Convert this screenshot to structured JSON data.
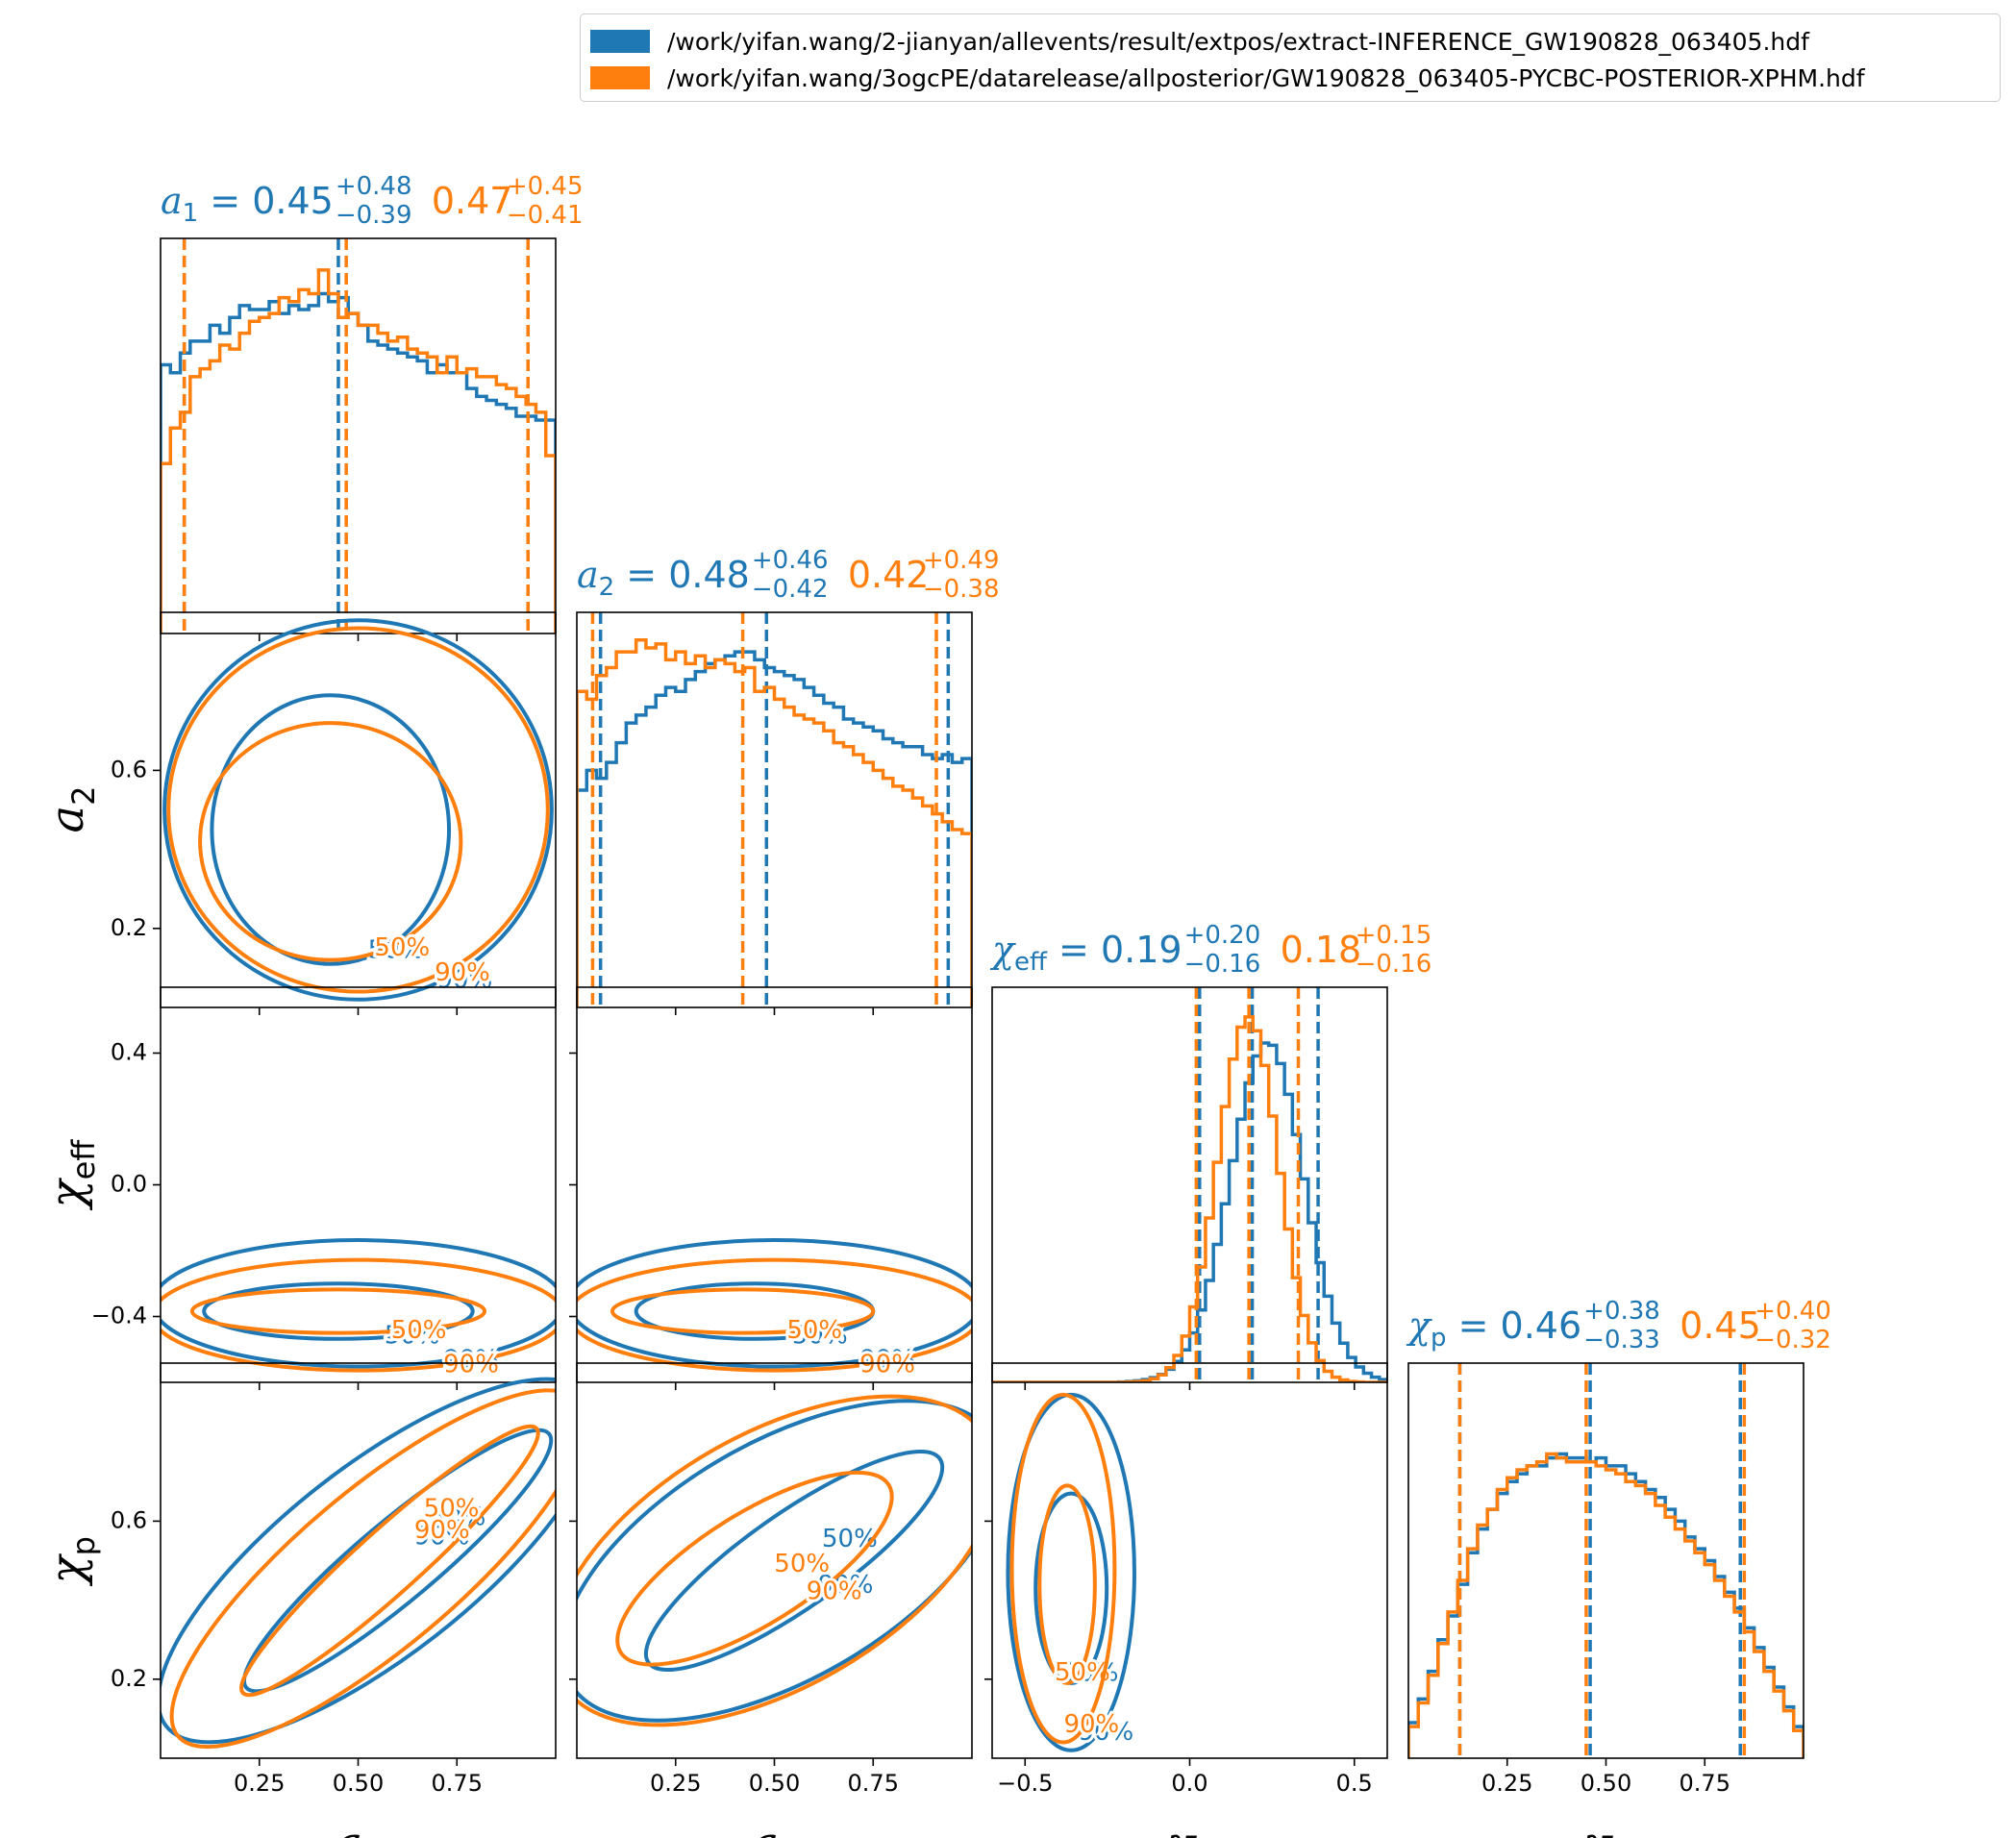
{
  "legend": {
    "entries": [
      {
        "label": "/work/yifan.wang/2-jianyan/allevents/result/extpos/extract-INFERENCE_GW190828_063405.hdf",
        "color": "#1f77b4"
      },
      {
        "label": "/work/yifan.wang/3ogcPE/datarelease/allposterior/GW190828_063405-PYCBC-POSTERIOR-XPHM.hdf",
        "color": "#ff7f0e"
      }
    ]
  },
  "chart_data": {
    "type": "corner",
    "colors": {
      "series1": "#1f77b4",
      "series2": "#ff7f0e"
    },
    "params": [
      {
        "key": "a1",
        "label": "a",
        "sub": "1",
        "range": [
          0,
          1
        ],
        "ticks": [
          0.25,
          0.5,
          0.75
        ],
        "tick_labels": [
          "0.25",
          "0.50",
          "0.75"
        ],
        "yticks": [],
        "ytick_labels": [],
        "summary": [
          {
            "median": "0.45",
            "plus": "+0.48",
            "minus": "−0.39"
          },
          {
            "median": "0.47",
            "plus": "+0.45",
            "minus": "−0.41"
          }
        ],
        "lines": [
          [
            0.06,
            0.45,
            0.93
          ],
          [
            0.06,
            0.47,
            0.93
          ]
        ]
      },
      {
        "key": "a2",
        "label": "a",
        "sub": "2",
        "range": [
          0,
          1
        ],
        "ticks": [
          0.25,
          0.5,
          0.75
        ],
        "tick_labels": [
          "0.25",
          "0.50",
          "0.75"
        ],
        "yticks": [
          0.2,
          0.6
        ],
        "ytick_labels": [
          "0.2",
          "0.6"
        ],
        "summary": [
          {
            "median": "0.48",
            "plus": "+0.46",
            "minus": "−0.42"
          },
          {
            "median": "0.42",
            "plus": "+0.49",
            "minus": "−0.38"
          }
        ],
        "lines": [
          [
            0.06,
            0.48,
            0.94
          ],
          [
            0.04,
            0.42,
            0.91
          ]
        ]
      },
      {
        "key": "chi_eff",
        "label": "χ",
        "sub": "eff",
        "range": [
          -0.6,
          0.6
        ],
        "ticks": [
          -0.5,
          0.0,
          0.5
        ],
        "tick_labels": [
          "−0.5",
          "0.0",
          "0.5"
        ],
        "yticks": [
          -0.4,
          0.0,
          0.4
        ],
        "ytick_labels": [
          "−0.4",
          "0.0",
          "0.4"
        ],
        "summary": [
          {
            "median": "0.19",
            "plus": "+0.20",
            "minus": "−0.16"
          },
          {
            "median": "0.18",
            "plus": "+0.15",
            "minus": "−0.16"
          }
        ],
        "lines": [
          [
            0.03,
            0.19,
            0.39
          ],
          [
            0.02,
            0.18,
            0.33
          ]
        ]
      },
      {
        "key": "chi_p",
        "label": "χ",
        "sub": "p",
        "range": [
          0,
          1
        ],
        "ticks": [
          0.25,
          0.5,
          0.75
        ],
        "tick_labels": [
          "0.25",
          "0.50",
          "0.75"
        ],
        "yticks": [
          0.2,
          0.6
        ],
        "ytick_labels": [
          "0.2",
          "0.6"
        ],
        "summary": [
          {
            "median": "0.46",
            "plus": "+0.38",
            "minus": "−0.33"
          },
          {
            "median": "0.45",
            "plus": "+0.40",
            "minus": "−0.32"
          }
        ],
        "lines": [
          [
            0.13,
            0.46,
            0.84
          ],
          [
            0.13,
            0.45,
            0.85
          ]
        ]
      }
    ],
    "histograms": [
      {
        "x_range": [
          0,
          1
        ],
        "series": [
          {
            "values": [
              0.68,
              0.66,
              0.71,
              0.74,
              0.74,
              0.78,
              0.76,
              0.8,
              0.83,
              0.82,
              0.82,
              0.84,
              0.81,
              0.83,
              0.82,
              0.83,
              0.86,
              0.84,
              0.85,
              0.81,
              0.78,
              0.74,
              0.73,
              0.72,
              0.71,
              0.7,
              0.69,
              0.66,
              0.68,
              0.66,
              0.66,
              0.62,
              0.6,
              0.59,
              0.58,
              0.57,
              0.55,
              0.55,
              0.54,
              0.54
            ]
          },
          {
            "values": [
              0.43,
              0.52,
              0.56,
              0.65,
              0.67,
              0.69,
              0.73,
              0.72,
              0.76,
              0.79,
              0.8,
              0.81,
              0.85,
              0.84,
              0.87,
              0.86,
              0.92,
              0.86,
              0.8,
              0.81,
              0.78,
              0.78,
              0.76,
              0.74,
              0.75,
              0.72,
              0.71,
              0.7,
              0.66,
              0.7,
              0.66,
              0.67,
              0.65,
              0.65,
              0.63,
              0.62,
              0.6,
              0.58,
              0.56,
              0.45
            ]
          }
        ]
      },
      {
        "x_range": [
          0,
          1
        ],
        "series": [
          {
            "values": [
              0.55,
              0.6,
              0.58,
              0.62,
              0.67,
              0.72,
              0.74,
              0.76,
              0.79,
              0.81,
              0.8,
              0.83,
              0.85,
              0.87,
              0.88,
              0.89,
              0.9,
              0.9,
              0.88,
              0.86,
              0.85,
              0.84,
              0.83,
              0.81,
              0.79,
              0.77,
              0.76,
              0.73,
              0.72,
              0.71,
              0.7,
              0.68,
              0.67,
              0.66,
              0.66,
              0.64,
              0.63,
              0.64,
              0.62,
              0.63
            ]
          },
          {
            "values": [
              0.8,
              0.78,
              0.84,
              0.86,
              0.9,
              0.9,
              0.93,
              0.91,
              0.92,
              0.88,
              0.9,
              0.87,
              0.89,
              0.86,
              0.88,
              0.87,
              0.85,
              0.86,
              0.8,
              0.81,
              0.78,
              0.76,
              0.74,
              0.73,
              0.72,
              0.7,
              0.67,
              0.66,
              0.64,
              0.62,
              0.6,
              0.58,
              0.56,
              0.55,
              0.53,
              0.51,
              0.49,
              0.47,
              0.45,
              0.44
            ]
          }
        ]
      },
      {
        "x_range": [
          -0.6,
          0.6
        ],
        "series": [
          {
            "values": [
              0,
              0,
              0,
              0,
              0,
              0,
              0,
              0,
              0,
              0,
              0,
              0,
              0,
              0,
              0,
              0,
              0.001,
              0.002,
              0.004,
              0.007,
              0.012,
              0.02,
              0.033,
              0.053,
              0.082,
              0.125,
              0.183,
              0.258,
              0.349,
              0.452,
              0.561,
              0.666,
              0.758,
              0.826,
              0.859,
              0.853,
              0.807,
              0.729,
              0.627,
              0.515,
              0.404,
              0.303,
              0.218,
              0.15,
              0.099,
              0.063,
              0.039,
              0.023,
              0.013,
              0.007
            ]
          },
          {
            "values": [
              0,
              0,
              0,
              0,
              0,
              0,
              0,
              0,
              0,
              0,
              0,
              0,
              0,
              0,
              0,
              0,
              0,
              0.001,
              0.002,
              0.004,
              0.009,
              0.019,
              0.037,
              0.068,
              0.117,
              0.191,
              0.292,
              0.416,
              0.557,
              0.698,
              0.818,
              0.899,
              0.925,
              0.89,
              0.802,
              0.674,
              0.529,
              0.388,
              0.265,
              0.169,
              0.1,
              0.055,
              0.028,
              0.013,
              0.006,
              0.002,
              0.001,
              0,
              0,
              0
            ]
          }
        ]
      },
      {
        "x_range": [
          0,
          1
        ],
        "series": [
          {
            "values": [
              0.09,
              0.15,
              0.22,
              0.3,
              0.36,
              0.44,
              0.52,
              0.58,
              0.63,
              0.67,
              0.7,
              0.72,
              0.74,
              0.74,
              0.76,
              0.77,
              0.76,
              0.76,
              0.75,
              0.76,
              0.74,
              0.74,
              0.72,
              0.7,
              0.68,
              0.66,
              0.63,
              0.6,
              0.56,
              0.53,
              0.5,
              0.46,
              0.42,
              0.38,
              0.33,
              0.28,
              0.23,
              0.18,
              0.13,
              0.08
            ]
          },
          {
            "values": [
              0.08,
              0.14,
              0.21,
              0.29,
              0.37,
              0.45,
              0.53,
              0.59,
              0.63,
              0.68,
              0.71,
              0.73,
              0.74,
              0.75,
              0.77,
              0.76,
              0.75,
              0.75,
              0.75,
              0.74,
              0.73,
              0.72,
              0.7,
              0.69,
              0.67,
              0.64,
              0.61,
              0.58,
              0.55,
              0.52,
              0.49,
              0.45,
              0.41,
              0.37,
              0.32,
              0.27,
              0.22,
              0.17,
              0.12,
              0.07
            ]
          }
        ]
      }
    ],
    "contour_level_labels": [
      "50%",
      "90%"
    ],
    "contours": [
      {
        "row": 1,
        "col": 0,
        "ellipses": [
          {
            "series": 0,
            "level": "50%",
            "cx": 0.43,
            "cy": 0.45,
            "rx": 0.3,
            "ry": 0.34,
            "rot": 0
          },
          {
            "series": 0,
            "level": "90%",
            "cx": 0.5,
            "cy": 0.5,
            "rx": 0.49,
            "ry": 0.48,
            "rot": 0
          },
          {
            "series": 1,
            "level": "50%",
            "cx": 0.43,
            "cy": 0.42,
            "rx": 0.33,
            "ry": 0.3,
            "rot": 0
          },
          {
            "series": 1,
            "level": "90%",
            "cx": 0.5,
            "cy": 0.5,
            "rx": 0.48,
            "ry": 0.46,
            "rot": 0
          }
        ]
      },
      {
        "row": 2,
        "col": 0,
        "ellipses": [
          {
            "series": 0,
            "level": "50%",
            "cx": 0.45,
            "cy": 0.18,
            "rx": 0.34,
            "ry": 0.07,
            "rot": 0
          },
          {
            "series": 0,
            "level": "90%",
            "cx": 0.5,
            "cy": 0.2,
            "rx": 0.52,
            "ry": 0.16,
            "rot": 0
          },
          {
            "series": 1,
            "level": "50%",
            "cx": 0.45,
            "cy": 0.18,
            "rx": 0.37,
            "ry": 0.055,
            "rot": 0
          },
          {
            "series": 1,
            "level": "90%",
            "cx": 0.5,
            "cy": 0.17,
            "rx": 0.52,
            "ry": 0.14,
            "rot": 0
          }
        ]
      },
      {
        "row": 2,
        "col": 1,
        "ellipses": [
          {
            "series": 0,
            "level": "50%",
            "cx": 0.45,
            "cy": 0.18,
            "rx": 0.3,
            "ry": 0.07,
            "rot": 0
          },
          {
            "series": 0,
            "level": "90%",
            "cx": 0.5,
            "cy": 0.2,
            "rx": 0.52,
            "ry": 0.16,
            "rot": 0
          },
          {
            "series": 1,
            "level": "50%",
            "cx": 0.42,
            "cy": 0.18,
            "rx": 0.33,
            "ry": 0.055,
            "rot": 0
          },
          {
            "series": 1,
            "level": "90%",
            "cx": 0.5,
            "cy": 0.17,
            "rx": 0.52,
            "ry": 0.14,
            "rot": 0
          }
        ]
      },
      {
        "row": 3,
        "col": 0,
        "ellipses": [
          {
            "series": 0,
            "level": "50%",
            "cx": 0.6,
            "cy": 0.5,
            "rx": 0.5,
            "ry": 0.1,
            "rot": 40
          },
          {
            "series": 0,
            "level": "90%",
            "cx": 0.55,
            "cy": 0.5,
            "rx": 0.68,
            "ry": 0.24,
            "rot": 38
          },
          {
            "series": 1,
            "level": "50%",
            "cx": 0.58,
            "cy": 0.5,
            "rx": 0.5,
            "ry": 0.08,
            "rot": 42
          },
          {
            "series": 1,
            "level": "90%",
            "cx": 0.55,
            "cy": 0.48,
            "rx": 0.66,
            "ry": 0.2,
            "rot": 40
          }
        ]
      },
      {
        "row": 3,
        "col": 1,
        "ellipses": [
          {
            "series": 0,
            "level": "50%",
            "cx": 0.55,
            "cy": 0.5,
            "rx": 0.45,
            "ry": 0.12,
            "rot": 35
          },
          {
            "series": 0,
            "level": "90%",
            "cx": 0.52,
            "cy": 0.5,
            "rx": 0.62,
            "ry": 0.3,
            "rot": 30
          },
          {
            "series": 1,
            "level": "50%",
            "cx": 0.45,
            "cy": 0.48,
            "rx": 0.4,
            "ry": 0.14,
            "rot": 32
          },
          {
            "series": 1,
            "level": "90%",
            "cx": 0.5,
            "cy": 0.5,
            "rx": 0.62,
            "ry": 0.32,
            "rot": 30
          }
        ]
      },
      {
        "row": 3,
        "col": 2,
        "ellipses": [
          {
            "series": 0,
            "level": "50%",
            "cx": 0.2,
            "cy": 0.43,
            "rx": 0.09,
            "ry": 0.24,
            "rot": 0
          },
          {
            "series": 0,
            "level": "90%",
            "cx": 0.2,
            "cy": 0.47,
            "rx": 0.16,
            "ry": 0.45,
            "rot": 0
          },
          {
            "series": 1,
            "level": "50%",
            "cx": 0.19,
            "cy": 0.44,
            "rx": 0.07,
            "ry": 0.25,
            "rot": 0
          },
          {
            "series": 1,
            "level": "90%",
            "cx": 0.18,
            "cy": 0.48,
            "rx": 0.13,
            "ry": 0.44,
            "rot": 0
          }
        ]
      }
    ]
  }
}
